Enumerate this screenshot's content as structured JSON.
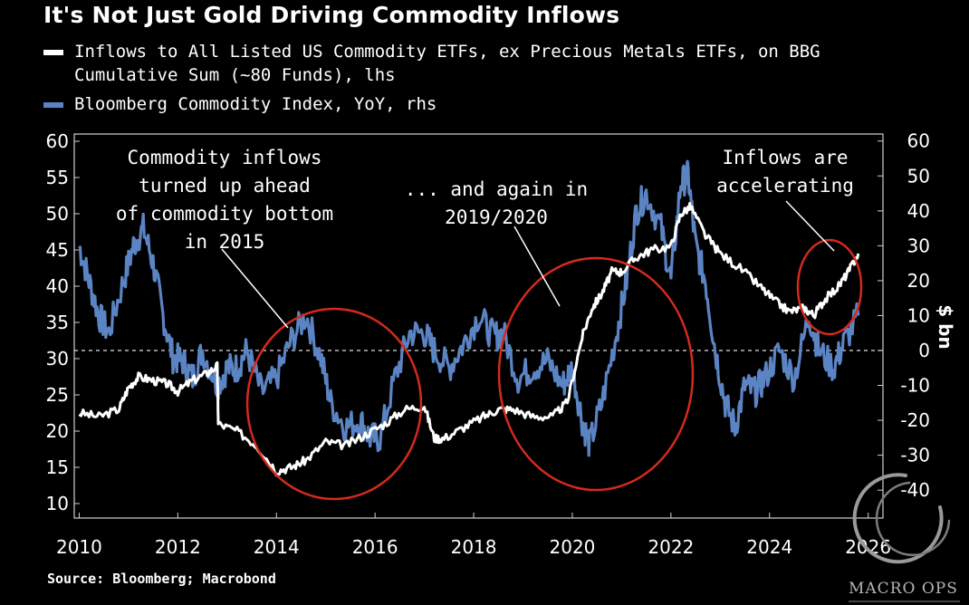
{
  "title": "It's Not Just Gold Driving Commodity Inflows",
  "legend": [
    {
      "label": "Inflows to All Listed US Commodity ETFs, ex Precious Metals ETFs, on BBG\nCumulative Sum (~80 Funds), lhs",
      "color": "#ffffff"
    },
    {
      "label": "Bloomberg Commodity Index, YoY, rhs",
      "color": "#5b84c4"
    }
  ],
  "source": "Source: Bloomberg; Macrobond",
  "watermark": "MACRO OPS",
  "annotations": [
    {
      "id": "a2015",
      "text": "Commodity inflows\nturned up ahead\nof commodity bottom\nin 2015"
    },
    {
      "id": "a2019",
      "text": "... and again in\n2019/2020"
    },
    {
      "id": "aacc",
      "text": "Inflows are\naccelerating"
    }
  ],
  "chart_data": {
    "type": "line",
    "x_axis": {
      "ticks": [
        "2010",
        "2012",
        "2014",
        "2016",
        "2018",
        "2020",
        "2022",
        "2024",
        "2026"
      ],
      "range": [
        2009.9,
        2026.3
      ]
    },
    "y_left": {
      "ticks": [
        "10",
        "15",
        "20",
        "25",
        "30",
        "35",
        "40",
        "45",
        "50",
        "55",
        "60"
      ],
      "range": [
        8,
        61
      ]
    },
    "y_right": {
      "ticks": [
        "-40",
        "-30",
        "-20",
        "-10",
        "0",
        "10",
        "20",
        "30",
        "40",
        "50",
        "60"
      ],
      "range": [
        -48,
        62
      ],
      "label": "$ bn",
      "reference_line": 0
    },
    "series": [
      {
        "name": "Inflows to All Listed US Commodity ETFs, ex Precious Metals ETFs, on BBG Cumulative Sum (~80 Funds), lhs",
        "axis": "left",
        "color": "#ffffff",
        "x": [
          2010.0,
          2010.4,
          2010.8,
          2011.0,
          2011.2,
          2011.5,
          2011.8,
          2012.0,
          2012.3,
          2012.6,
          2012.8,
          2012.82,
          2013.2,
          2013.6,
          2014.0,
          2014.3,
          2014.6,
          2015.0,
          2015.4,
          2015.8,
          2016.2,
          2016.6,
          2017.0,
          2017.2,
          2017.4,
          2017.8,
          2018.2,
          2018.5,
          2018.8,
          2019.2,
          2019.6,
          2019.9,
          2020.2,
          2020.4,
          2020.6,
          2020.8,
          2021.0,
          2021.3,
          2021.6,
          2022.0,
          2022.2,
          2022.4,
          2022.7,
          2023.0,
          2023.4,
          2023.8,
          2024.1,
          2024.4,
          2024.7,
          2024.9,
          2025.1,
          2025.4,
          2025.6,
          2025.8
        ],
        "y": [
          22.5,
          22.0,
          23.0,
          26.0,
          27.5,
          27.0,
          26.5,
          25.5,
          27.0,
          28.0,
          29.0,
          21.0,
          20.0,
          18.0,
          14.5,
          15.0,
          16.0,
          18.5,
          18.0,
          19.5,
          21.0,
          23.0,
          23.5,
          19.0,
          19.0,
          20.5,
          22.0,
          23.0,
          23.0,
          22.0,
          22.0,
          24.0,
          33.0,
          37.0,
          39.0,
          42.0,
          42.0,
          44.0,
          45.0,
          45.5,
          50.0,
          51.0,
          47.0,
          44.5,
          42.5,
          40.0,
          38.0,
          36.5,
          37.0,
          36.0,
          38.0,
          40.0,
          42.0,
          44.5
        ]
      },
      {
        "name": "Bloomberg Commodity Index, YoY, rhs",
        "axis": "right",
        "color": "#5b84c4",
        "x": [
          2010.0,
          2010.2,
          2010.4,
          2010.6,
          2010.9,
          2011.1,
          2011.3,
          2011.5,
          2011.7,
          2011.9,
          2012.1,
          2012.3,
          2012.5,
          2012.8,
          2013.0,
          2013.2,
          2013.4,
          2013.7,
          2014.0,
          2014.3,
          2014.6,
          2014.9,
          2015.1,
          2015.4,
          2015.7,
          2015.9,
          2016.1,
          2016.4,
          2016.7,
          2017.0,
          2017.2,
          2017.5,
          2017.8,
          2018.1,
          2018.4,
          2018.6,
          2018.9,
          2019.2,
          2019.5,
          2019.8,
          2020.0,
          2020.2,
          2020.35,
          2020.6,
          2020.9,
          2021.1,
          2021.3,
          2021.5,
          2021.8,
          2022.0,
          2022.2,
          2022.35,
          2022.5,
          2022.7,
          2022.9,
          2023.1,
          2023.3,
          2023.5,
          2023.7,
          2023.9,
          2024.2,
          2024.5,
          2024.8,
          2025.0,
          2025.3,
          2025.5,
          2025.8
        ],
        "y": [
          30,
          20,
          10,
          5,
          20,
          30,
          35,
          25,
          10,
          -2,
          -3,
          -8,
          0,
          -10,
          -5,
          -5,
          0,
          -12,
          -8,
          3,
          10,
          -2,
          -15,
          -22,
          -20,
          -25,
          -25,
          -8,
          5,
          5,
          0,
          -5,
          2,
          10,
          4,
          5,
          -8,
          -5,
          -3,
          -10,
          -5,
          -20,
          -27,
          -15,
          5,
          20,
          40,
          45,
          35,
          20,
          48,
          50,
          30,
          20,
          0,
          -15,
          -22,
          -10,
          -12,
          -8,
          0,
          -8,
          10,
          0,
          -5,
          2,
          10
        ]
      }
    ]
  }
}
